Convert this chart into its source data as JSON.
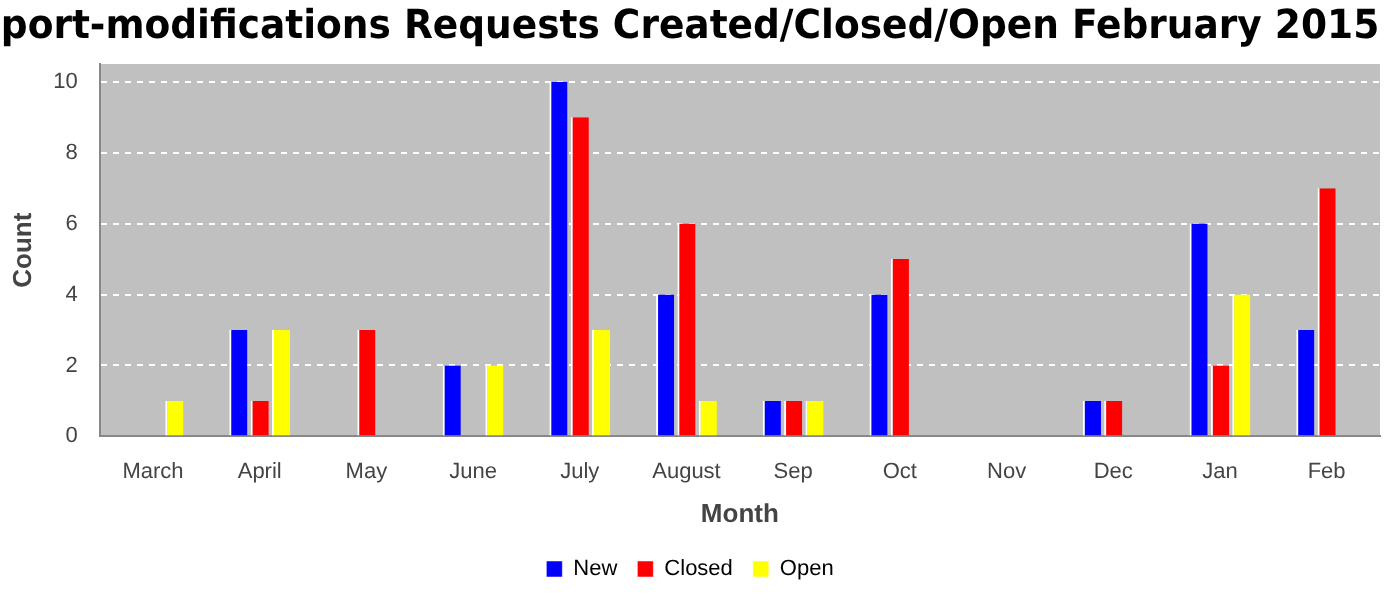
{
  "chart_data": {
    "type": "bar",
    "title": "port-modifications Requests Created/Closed/Open February 2015",
    "xlabel": "Month",
    "ylabel": "Count",
    "categories": [
      "March",
      "April",
      "May",
      "June",
      "July",
      "August",
      "Sep",
      "Oct",
      "Nov",
      "Dec",
      "Jan",
      "Feb"
    ],
    "series": [
      {
        "name": "New",
        "color": "#0000ff",
        "values": [
          0,
          3,
          0,
          2,
          10,
          4,
          1,
          4,
          0,
          1,
          6,
          3
        ]
      },
      {
        "name": "Closed",
        "color": "#ff0000",
        "values": [
          0,
          1,
          3,
          0,
          9,
          6,
          1,
          5,
          0,
          1,
          2,
          7
        ]
      },
      {
        "name": "Open",
        "color": "#ffff00",
        "values": [
          1,
          3,
          0,
          2,
          3,
          1,
          1,
          0,
          0,
          0,
          4,
          0
        ]
      }
    ],
    "ylim": [
      0,
      10.5
    ],
    "yticks": [
      0,
      2,
      4,
      6,
      8,
      10
    ],
    "grid": "y",
    "legend": "bottom"
  }
}
